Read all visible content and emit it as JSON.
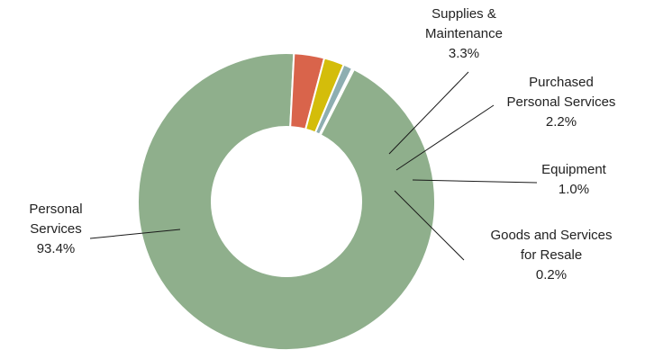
{
  "chart_data": {
    "type": "pie",
    "donut": true,
    "legend": "none",
    "slices": [
      {
        "name": "Personal Services",
        "name_lines": [
          "Personal",
          "Services"
        ],
        "pct": 93.4,
        "label": "93.4%",
        "color": "#8faf8c"
      },
      {
        "name": "Supplies & Maintenance",
        "name_lines": [
          "Supplies &",
          "Maintenance"
        ],
        "pct": 3.3,
        "label": "3.3%",
        "color": "#d9644b"
      },
      {
        "name": "Purchased Personal Services",
        "name_lines": [
          "Purchased",
          "Personal Services"
        ],
        "pct": 2.2,
        "label": "2.2%",
        "color": "#d4bd0a"
      },
      {
        "name": "Equipment",
        "name_lines": [
          "Equipment"
        ],
        "pct": 1.0,
        "label": "1.0%",
        "color": "#8eaeb1"
      },
      {
        "name": "Goods and Services for Resale",
        "name_lines": [
          "Goods and Services",
          "for Resale"
        ],
        "pct": 0.2,
        "label": "0.2%",
        "color": "#b7c3cf"
      }
    ]
  }
}
